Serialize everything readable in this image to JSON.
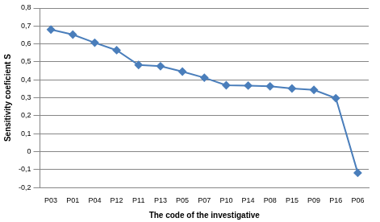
{
  "chart_data": {
    "type": "line",
    "x_label": "The code of the investigative",
    "y_label": "Sensitivity coeficient S",
    "categories": [
      "P03",
      "P01",
      "P04",
      "P12",
      "P11",
      "P13",
      "P05",
      "P07",
      "P10",
      "P14",
      "P08",
      "P15",
      "P09",
      "P16",
      "P06"
    ],
    "values": [
      0.68,
      0.652,
      0.607,
      0.565,
      0.483,
      0.476,
      0.446,
      0.412,
      0.37,
      0.368,
      0.364,
      0.352,
      0.344,
      0.298,
      -0.118
    ],
    "color": "#4a7ebb",
    "marker": "diamond",
    "line_style": "solid",
    "ylim": [
      -0.2,
      0.8
    ],
    "yticks": [
      {
        "value": -0.2,
        "label": "-0,2"
      },
      {
        "value": -0.1,
        "label": "-0,1"
      },
      0,
      {
        "value": 0.1,
        "label": "0,1"
      },
      {
        "value": 0.2,
        "label": "0,2"
      },
      {
        "value": 0.3,
        "label": "0,3"
      },
      {
        "value": 0.4,
        "label": "0,4"
      },
      {
        "value": 0.5,
        "label": "0,5"
      },
      {
        "value": 0.6,
        "label": "0,6"
      },
      {
        "value": 0.7,
        "label": "0,7"
      },
      {
        "value": 0.8,
        "label": "0,8"
      }
    ],
    "grid": true
  }
}
